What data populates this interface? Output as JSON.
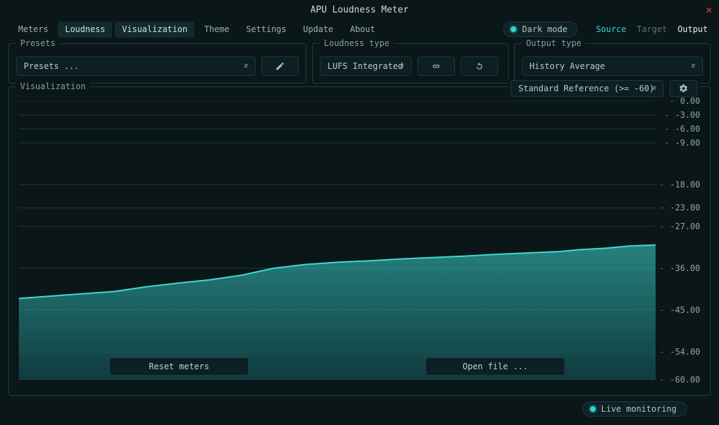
{
  "window": {
    "title": "APU Loudness Meter"
  },
  "tabs": [
    {
      "label": "Meters",
      "active": false
    },
    {
      "label": "Loudness",
      "active": true
    },
    {
      "label": "Visualization",
      "active": true
    },
    {
      "label": "Theme",
      "active": false
    },
    {
      "label": "Settings",
      "active": false
    },
    {
      "label": "Update",
      "active": false
    },
    {
      "label": "About",
      "active": false
    }
  ],
  "top_right": {
    "dark_mode_label": "Dark mode",
    "modes": {
      "source": "Source",
      "target": "Target",
      "output": "Output"
    }
  },
  "presets": {
    "legend": "Presets",
    "selected": "Presets ..."
  },
  "loudness_type": {
    "legend": "Loudness type",
    "selected": "LUFS Integrated"
  },
  "output_type": {
    "legend": "Output type",
    "selected": "History Average"
  },
  "visualization": {
    "legend": "Visualization",
    "reference_selected": "Standard Reference (>= -60)",
    "reset_label": "Reset meters",
    "open_label": "Open file ...",
    "live_label": "Live monitoring"
  },
  "chart": {
    "type": "area",
    "xlim": [
      0,
      100
    ],
    "ylim": [
      -60,
      0
    ],
    "yticks": [
      0.0,
      -3.0,
      -6.0,
      -9.0,
      -18.0,
      -23.0,
      -27.0,
      -36.0,
      -45.0,
      -54.0,
      -60.0
    ],
    "ytick_labels": [
      "0.00",
      "-3.00",
      "-6.00",
      "-9.00",
      "-18.00",
      "-23.00",
      "-27.00",
      "-36.00",
      "-45.00",
      "-54.00",
      "-60.00"
    ],
    "line_x": [
      0,
      5,
      10,
      15,
      20,
      25,
      30,
      35,
      40,
      45,
      50,
      55,
      60,
      65,
      70,
      75,
      80,
      85,
      88,
      92,
      96,
      100
    ],
    "line_y": [
      -42.5,
      -42.0,
      -41.5,
      -41.0,
      -40.0,
      -39.2,
      -38.5,
      -37.5,
      -36.0,
      -35.2,
      -34.7,
      -34.4,
      -34.0,
      -33.7,
      -33.4,
      -33.0,
      -32.7,
      -32.4,
      -32.0,
      -31.7,
      -31.2,
      -31.0
    ],
    "line_color": "#3fd9d2",
    "line_width": 2,
    "area_color_top": "rgba(63,217,210,0.55)",
    "area_color_bottom": "rgba(20,90,95,0.55)",
    "grid_color": "#14282b",
    "background_color": "#0a1618",
    "label_color": "#8fa4a8",
    "label_fontsize": 12
  }
}
